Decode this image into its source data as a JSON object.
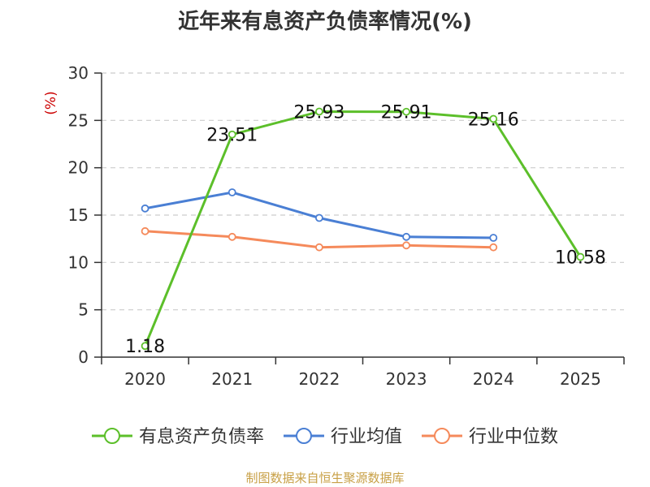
{
  "chart_data": {
    "type": "line",
    "title": "近年来有息资产负债率情况(%)",
    "ylabel": "(%)",
    "xlabel": "",
    "ylim": [
      0,
      30
    ],
    "yticks": [
      0,
      5,
      10,
      15,
      20,
      25,
      30
    ],
    "categories": [
      "2020",
      "2021",
      "2022",
      "2023",
      "2024",
      "2025"
    ],
    "grid": true,
    "legend_position": "bottom",
    "series": [
      {
        "name": "有息资产负债率",
        "color": "#5cbf2a",
        "values": [
          1.18,
          23.51,
          25.93,
          25.91,
          25.16,
          10.58
        ],
        "labels": [
          "1.18",
          "23.51",
          "25.93",
          "25.91",
          "25.16",
          "10.58"
        ]
      },
      {
        "name": "行业均值",
        "color": "#4a7fd4",
        "values": [
          15.7,
          17.4,
          14.7,
          12.7,
          12.6,
          null
        ]
      },
      {
        "name": "行业中位数",
        "color": "#f58a5b",
        "values": [
          13.3,
          12.7,
          11.6,
          11.8,
          11.6,
          null
        ]
      }
    ]
  },
  "source": "制图数据来自恒生聚源数据库",
  "colors": {
    "axis": "#333333",
    "grid": "#cccccc",
    "ylabel": "#cc0000",
    "source": "#c8a046"
  }
}
